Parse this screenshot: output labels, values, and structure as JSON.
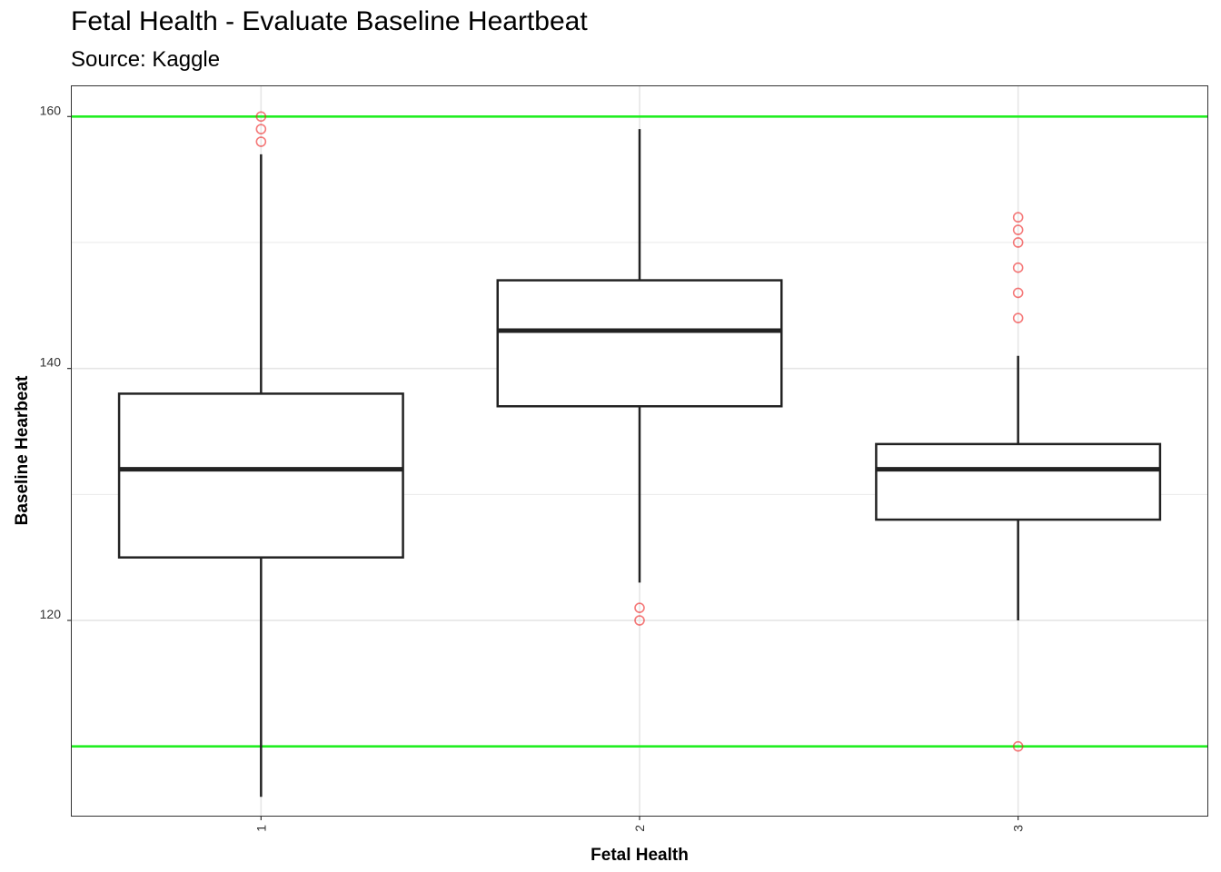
{
  "chart_data": {
    "type": "boxplot",
    "title": "Fetal Health - Evaluate Baseline Heartbeat",
    "subtitle": "Source: Kaggle",
    "xlabel": "Fetal Health",
    "ylabel": "Baseline Hearbeat",
    "ylim": [
      104.5,
      162.4
    ],
    "y_ticks": [
      120,
      140,
      160
    ],
    "categories": [
      "1",
      "2",
      "3"
    ],
    "boxes": [
      {
        "category": "1",
        "whisker_low": 106,
        "q1": 125,
        "median": 132,
        "q3": 138,
        "whisker_high": 157,
        "outliers": [
          158,
          159,
          160
        ]
      },
      {
        "category": "2",
        "whisker_low": 123,
        "q1": 137,
        "median": 143,
        "q3": 147,
        "whisker_high": 159,
        "outliers": [
          120,
          121
        ]
      },
      {
        "category": "3",
        "whisker_low": 120,
        "q1": 128,
        "median": 132,
        "q3": 134,
        "whisker_high": 141,
        "outliers": [
          110,
          144,
          146,
          148,
          150,
          151,
          152
        ]
      }
    ],
    "reference_lines": [
      160,
      110
    ],
    "reference_line_color": "#22ee22",
    "outlier_color": "#ee2222",
    "box_color": "#222222",
    "grid": true
  }
}
